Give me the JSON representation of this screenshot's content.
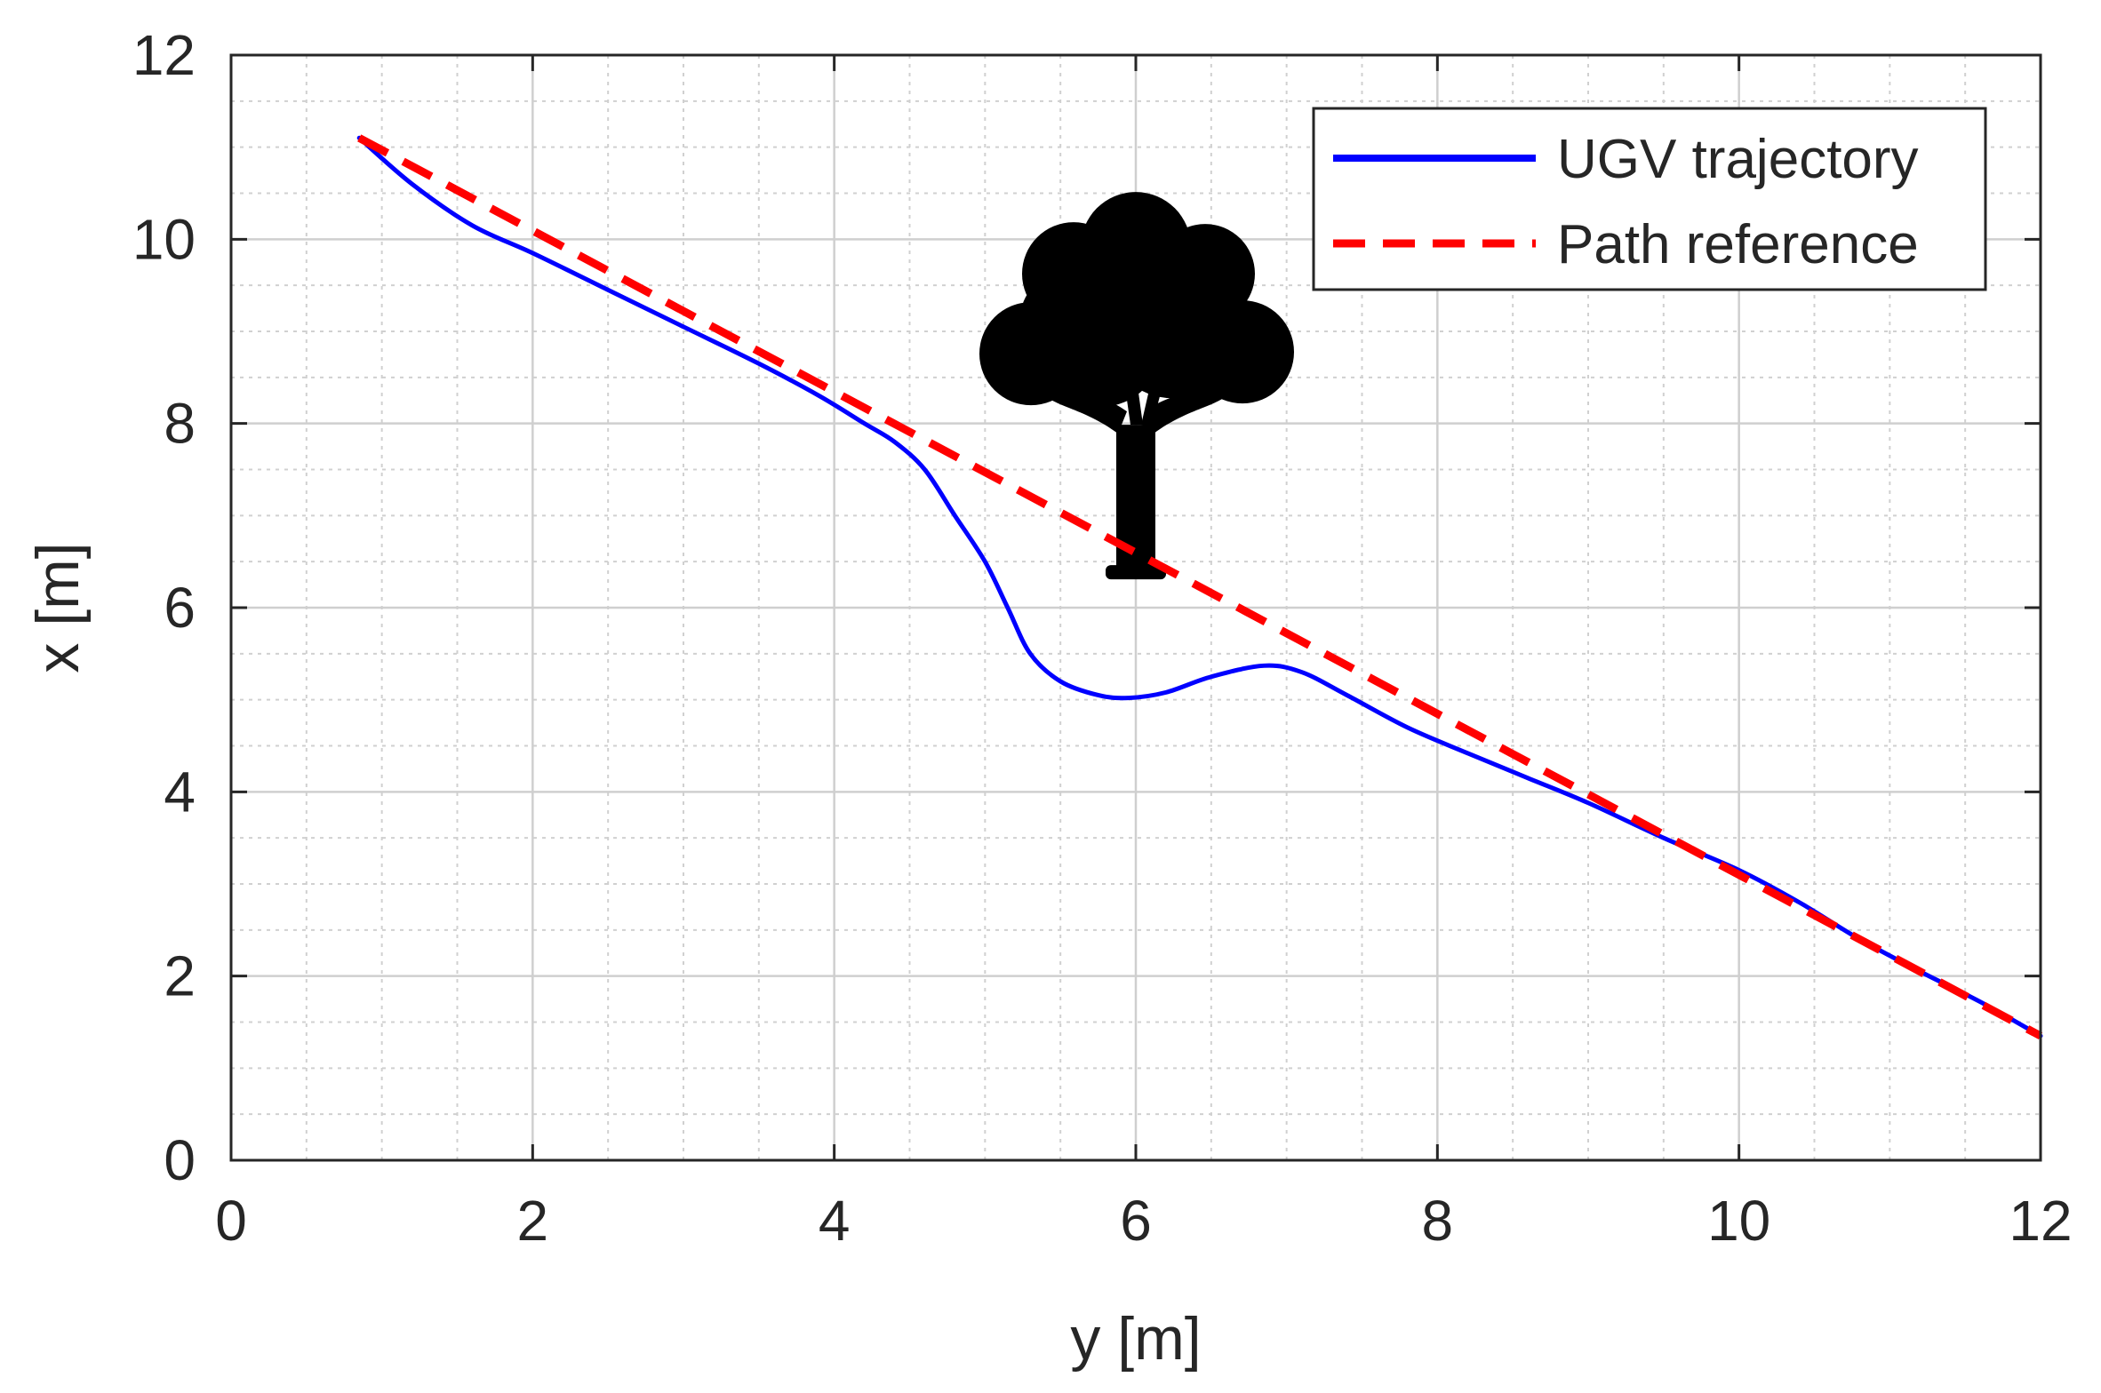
{
  "chart_data": {
    "type": "line",
    "xlabel": "y [m]",
    "ylabel": "x [m]",
    "xlim": [
      0,
      12
    ],
    "ylim": [
      0,
      12
    ],
    "x_ticks": [
      0,
      2,
      4,
      6,
      8,
      10,
      12
    ],
    "y_ticks": [
      0,
      2,
      4,
      6,
      8,
      10,
      12
    ],
    "x_tick_labels": [
      "0",
      "2",
      "4",
      "6",
      "8",
      "10",
      "12"
    ],
    "y_tick_labels": [
      "0",
      "2",
      "4",
      "6",
      "8",
      "10",
      "12"
    ],
    "grid": true,
    "minor_grid": true,
    "legend_position": "top-right",
    "series": [
      {
        "name": "UGV trajectory",
        "color": "#0000ff",
        "style": "solid",
        "points": [
          [
            0.85,
            11.1
          ],
          [
            1.2,
            10.6
          ],
          [
            1.6,
            10.15
          ],
          [
            2.0,
            9.85
          ],
          [
            2.5,
            9.45
          ],
          [
            3.0,
            9.05
          ],
          [
            3.5,
            8.65
          ],
          [
            3.9,
            8.3
          ],
          [
            4.2,
            8.0
          ],
          [
            4.4,
            7.8
          ],
          [
            4.6,
            7.5
          ],
          [
            4.8,
            7.0
          ],
          [
            5.0,
            6.5
          ],
          [
            5.15,
            6.0
          ],
          [
            5.3,
            5.5
          ],
          [
            5.5,
            5.2
          ],
          [
            5.75,
            5.05
          ],
          [
            5.95,
            5.02
          ],
          [
            6.2,
            5.08
          ],
          [
            6.5,
            5.25
          ],
          [
            6.85,
            5.37
          ],
          [
            7.1,
            5.3
          ],
          [
            7.4,
            5.05
          ],
          [
            7.8,
            4.7
          ],
          [
            8.2,
            4.42
          ],
          [
            8.6,
            4.15
          ],
          [
            9.0,
            3.88
          ],
          [
            9.5,
            3.5
          ],
          [
            10.0,
            3.15
          ],
          [
            10.4,
            2.8
          ],
          [
            10.8,
            2.4
          ],
          [
            11.2,
            2.05
          ],
          [
            11.6,
            1.72
          ],
          [
            12.0,
            1.35
          ]
        ]
      },
      {
        "name": "Path reference",
        "color": "#ff0000",
        "style": "dashed",
        "points": [
          [
            0.85,
            11.1
          ],
          [
            12.0,
            1.35
          ]
        ]
      }
    ],
    "annotations": [
      {
        "type": "tree-icon",
        "x": 6.0,
        "y": 7.6,
        "color": "#000000"
      }
    ]
  }
}
